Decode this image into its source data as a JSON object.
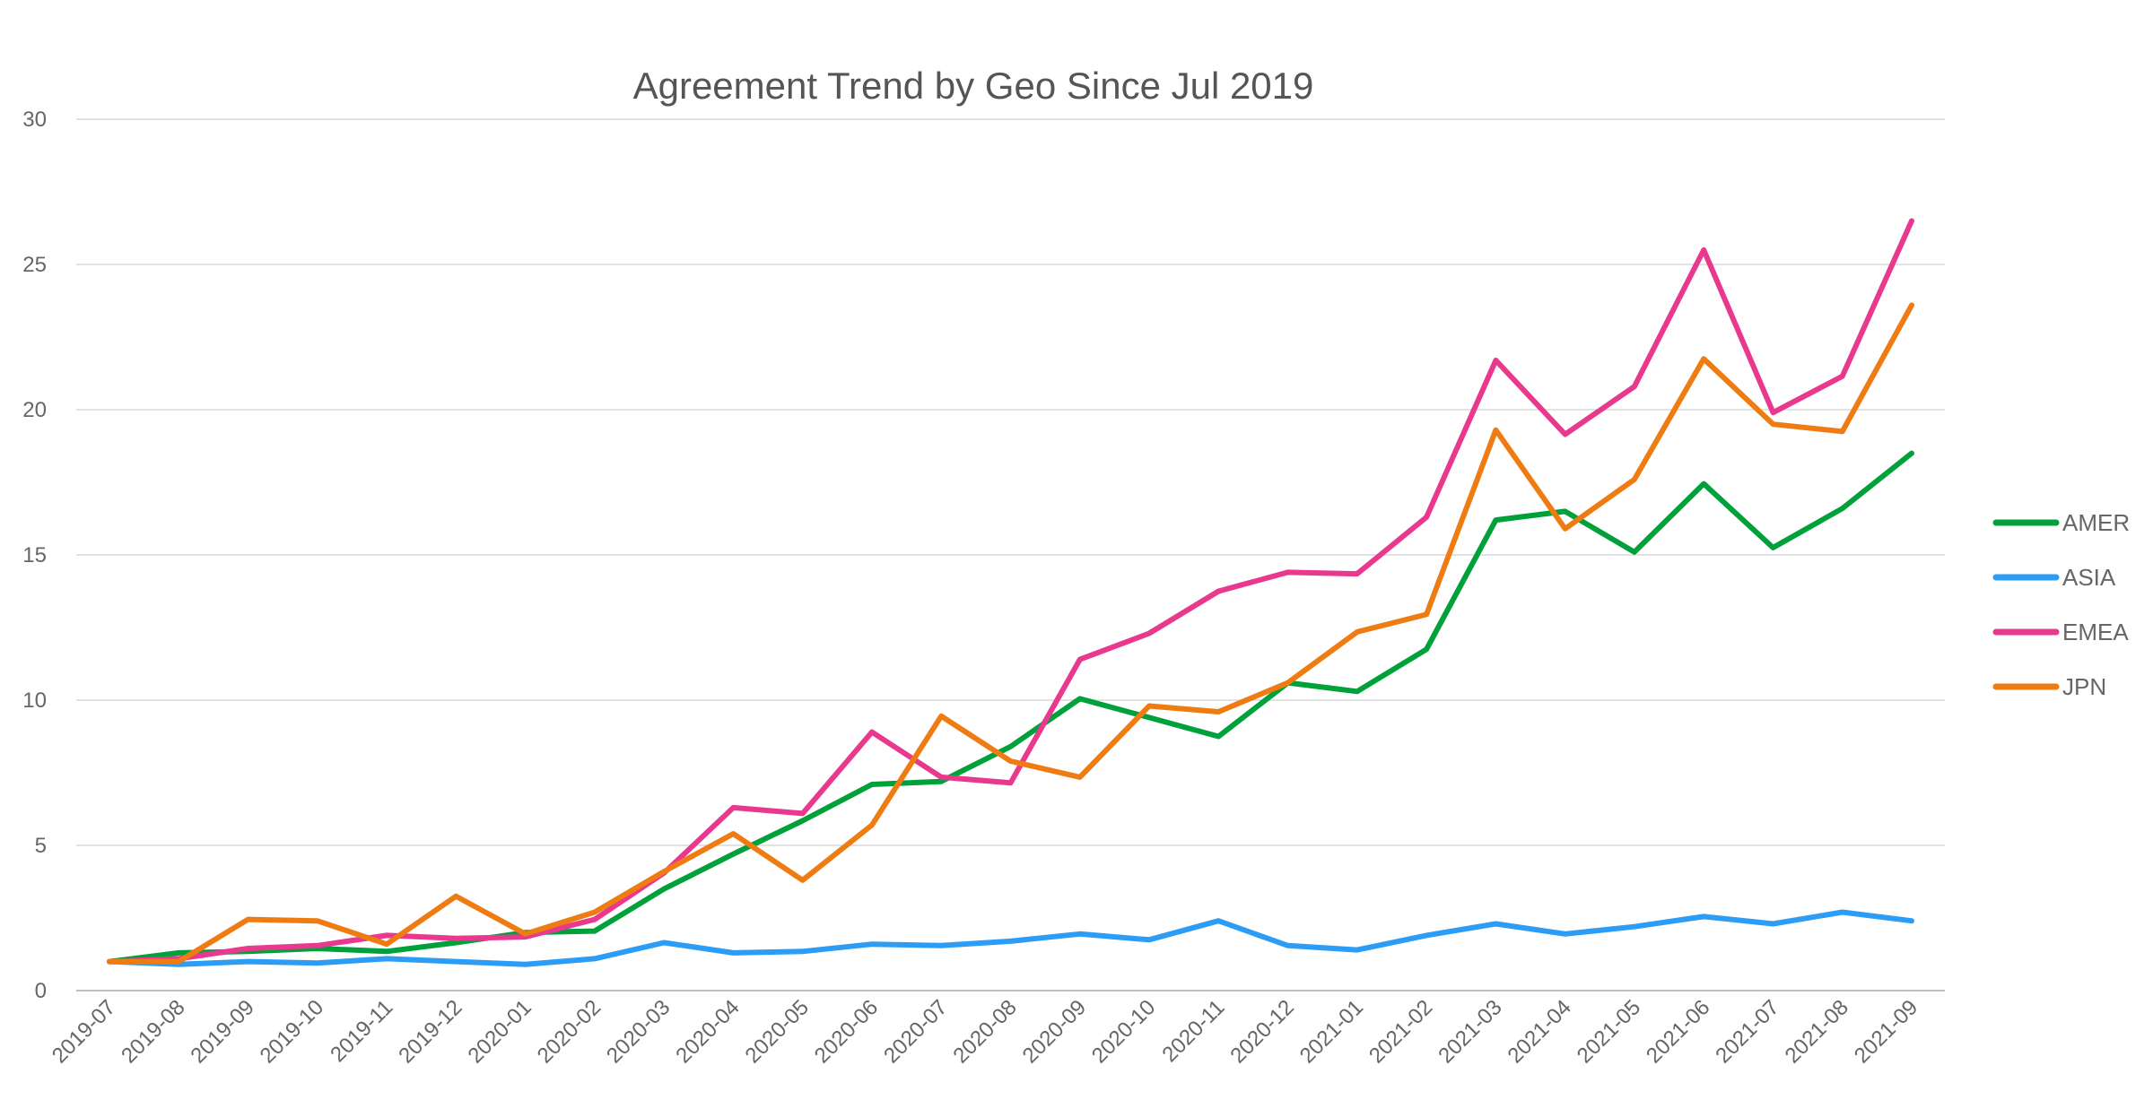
{
  "chart_data": {
    "type": "line",
    "title": "Agreement Trend by Geo Since Jul 2019",
    "xlabel": "",
    "ylabel": "",
    "ylim": [
      0,
      30
    ],
    "yticks": [
      "0",
      "5",
      "10",
      "15",
      "20",
      "25",
      "30"
    ],
    "grid": true,
    "legend_position": "right",
    "categories": [
      "2019-07",
      "2019-08",
      "2019-09",
      "2019-10",
      "2019-11",
      "2019-12",
      "2020-01",
      "2020-02",
      "2020-03",
      "2020-04",
      "2020-05",
      "2020-06",
      "2020-07",
      "2020-08",
      "2020-09",
      "2020-10",
      "2020-11",
      "2020-12",
      "2021-01",
      "2021-02",
      "2021-03",
      "2021-04",
      "2021-05",
      "2021-06",
      "2021-07",
      "2021-08",
      "2021-09"
    ],
    "series": [
      {
        "name": "AMER",
        "color": "#00a13b",
        "values": [
          1.0,
          1.3,
          1.35,
          1.45,
          1.35,
          1.65,
          2.0,
          2.05,
          3.5,
          4.7,
          5.85,
          7.1,
          7.2,
          8.4,
          10.05,
          9.4,
          8.75,
          10.6,
          10.3,
          11.75,
          16.2,
          16.5,
          15.1,
          17.45,
          15.25,
          16.6,
          18.5
        ]
      },
      {
        "name": "ASIA",
        "color": "#2d9cf4",
        "values": [
          1.0,
          0.9,
          1.0,
          0.95,
          1.1,
          1.0,
          0.9,
          1.1,
          1.65,
          1.3,
          1.35,
          1.6,
          1.55,
          1.7,
          1.95,
          1.75,
          2.4,
          1.55,
          1.4,
          1.9,
          2.3,
          1.95,
          2.2,
          2.55,
          2.3,
          2.7,
          2.4
        ]
      },
      {
        "name": "EMEA",
        "color": "#e8398f",
        "values": [
          1.0,
          1.1,
          1.45,
          1.55,
          1.9,
          1.8,
          1.85,
          2.45,
          4.05,
          6.3,
          6.1,
          8.9,
          7.35,
          7.15,
          11.4,
          12.3,
          13.75,
          14.4,
          14.35,
          16.3,
          21.7,
          19.15,
          20.8,
          25.5,
          19.9,
          21.15,
          26.5
        ]
      },
      {
        "name": "JPN",
        "color": "#ef7c12",
        "values": [
          1.0,
          1.0,
          2.45,
          2.4,
          1.6,
          3.25,
          1.95,
          2.7,
          4.1,
          5.4,
          3.8,
          5.7,
          9.45,
          7.9,
          7.35,
          9.8,
          9.6,
          10.6,
          12.35,
          12.95,
          19.3,
          15.9,
          17.6,
          21.75,
          19.5,
          19.25,
          23.6
        ]
      }
    ]
  }
}
